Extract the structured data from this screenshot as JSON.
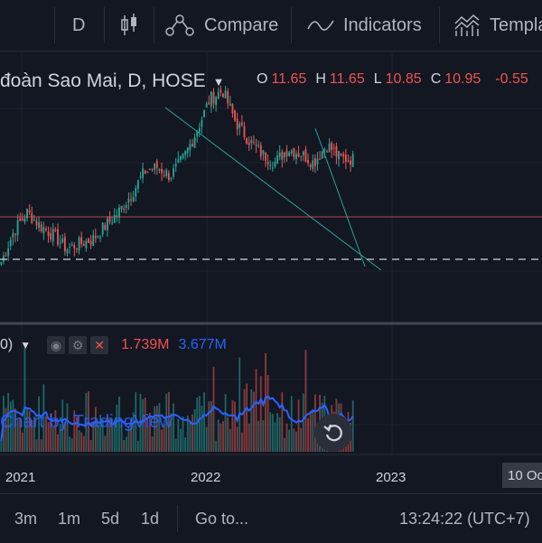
{
  "toolbar": {
    "interval": "D",
    "compare_label": "Compare",
    "indicators_label": "Indicators",
    "templates_label": "Templa"
  },
  "legend": {
    "symbol_title": "đoàn Sao Mai, D, HOSE",
    "open_key": "O",
    "open_value": "11.65",
    "high_key": "H",
    "high_value": "11.65",
    "low_key": "L",
    "low_value": "10.85",
    "close_key": "C",
    "close_value": "10.95",
    "change_value": "-0.55"
  },
  "volume_legend": {
    "label_fragment": "0)",
    "volume_value": "1.739M",
    "ma_value": "3.677M"
  },
  "watermark": "Chart by TradingView",
  "time_axis": {
    "labels": [
      "2021",
      "2022",
      "2023"
    ],
    "crosshair_date": "10 Oc"
  },
  "bottom_bar": {
    "ranges": [
      "3m",
      "1m",
      "5d",
      "1d"
    ],
    "goto_label": "Go to...",
    "clock": "13:24:22 (UTC+7)"
  },
  "colors": {
    "background": "#131722",
    "up": "#26a69a",
    "down": "#ef5350",
    "ma_line": "#2962ff",
    "trendline": "#26a69a"
  },
  "chart_data": {
    "type": "candlestick",
    "x_labels": [
      "2021",
      "2022",
      "2023"
    ],
    "approx_closes": [
      6.4,
      7.8,
      8.6,
      8.0,
      7.6,
      7.0,
      7.2,
      7.4,
      8.0,
      8.6,
      9.4,
      10.4,
      10.6,
      10.2,
      11.0,
      12.2,
      13.6,
      14.0,
      12.6,
      11.8,
      11.2,
      10.8,
      11.4,
      11.2,
      10.8,
      11.6,
      11.0,
      10.95
    ],
    "volume": {
      "last_value": "1.739M",
      "ma_value": "3.677M"
    }
  }
}
